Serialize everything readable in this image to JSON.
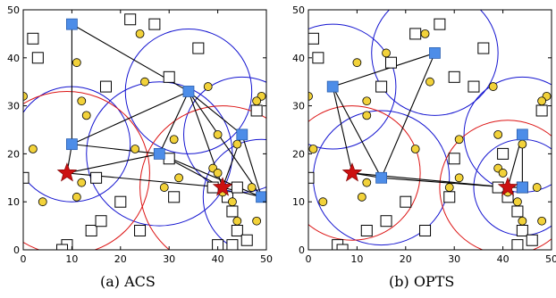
{
  "chart_data": [
    {
      "type": "scatter",
      "caption": "(a) ACS",
      "xlim": [
        0,
        50
      ],
      "ylim": [
        0,
        50
      ],
      "xticks": [
        0,
        10,
        20,
        30,
        40,
        50
      ],
      "yticks": [
        0,
        10,
        20,
        30,
        40,
        50
      ],
      "grid": false,
      "colors": {
        "square_nodes": "#4d8de8",
        "stars": "#cc1010",
        "circles": "#f2d23a",
        "coverage_blue": "#1414d0",
        "coverage_red": "#dc1414"
      },
      "hollow_squares": [
        [
          2,
          44
        ],
        [
          3,
          40
        ],
        [
          0,
          15
        ],
        [
          9,
          1
        ],
        [
          8,
          0
        ],
        [
          14,
          4
        ],
        [
          15,
          15
        ],
        [
          17,
          34
        ],
        [
          16,
          6
        ],
        [
          20,
          10
        ],
        [
          24,
          4
        ],
        [
          31,
          11
        ],
        [
          30,
          36
        ],
        [
          30,
          19
        ],
        [
          36,
          42
        ],
        [
          39,
          13
        ],
        [
          42,
          11
        ],
        [
          44,
          13
        ],
        [
          43,
          8
        ],
        [
          44,
          4
        ],
        [
          43,
          1
        ],
        [
          48,
          29
        ],
        [
          40,
          1
        ],
        [
          22,
          48
        ],
        [
          46,
          2
        ],
        [
          27,
          47
        ]
      ],
      "yellow_circles": [
        [
          0,
          32
        ],
        [
          2,
          21
        ],
        [
          4,
          10
        ],
        [
          11,
          39
        ],
        [
          12,
          31
        ],
        [
          13,
          28
        ],
        [
          12,
          14
        ],
        [
          11,
          11
        ],
        [
          23,
          21
        ],
        [
          24,
          45
        ],
        [
          25,
          35
        ],
        [
          31,
          23
        ],
        [
          29,
          13
        ],
        [
          32,
          15
        ],
        [
          38,
          34
        ],
        [
          39,
          17
        ],
        [
          40,
          16
        ],
        [
          40,
          24
        ],
        [
          41,
          12
        ],
        [
          43,
          10
        ],
        [
          44,
          6
        ],
        [
          44,
          22
        ],
        [
          47,
          13
        ],
        [
          48,
          6
        ],
        [
          49,
          32
        ],
        [
          48,
          31
        ]
      ],
      "blue_squares": [
        [
          10,
          47
        ],
        [
          10,
          22
        ],
        [
          28,
          20
        ],
        [
          34,
          33
        ],
        [
          45,
          24
        ],
        [
          49,
          11
        ]
      ],
      "red_stars": [
        [
          9,
          16
        ],
        [
          41,
          13
        ]
      ],
      "blue_circles": [
        {
          "c": [
            10,
            22
          ],
          "r": 12
        },
        {
          "c": [
            34,
            33
          ],
          "r": 13
        },
        {
          "c": [
            28,
            20
          ],
          "r": 15
        },
        {
          "c": [
            45,
            24
          ],
          "r": 12
        },
        {
          "c": [
            49,
            11
          ],
          "r": 12
        }
      ],
      "red_circles": [
        {
          "c": [
            9,
            16
          ],
          "r": 17
        },
        {
          "c": [
            41,
            13
          ],
          "r": 17
        }
      ],
      "links": [
        [
          [
            10,
            47
          ],
          [
            34,
            33
          ]
        ],
        [
          [
            10,
            47
          ],
          [
            10,
            22
          ]
        ],
        [
          [
            10,
            22
          ],
          [
            9,
            16
          ]
        ],
        [
          [
            10,
            22
          ],
          [
            28,
            20
          ]
        ],
        [
          [
            10,
            22
          ],
          [
            34,
            33
          ]
        ],
        [
          [
            9,
            16
          ],
          [
            28,
            20
          ]
        ],
        [
          [
            9,
            16
          ],
          [
            41,
            13
          ]
        ],
        [
          [
            28,
            20
          ],
          [
            34,
            33
          ]
        ],
        [
          [
            28,
            20
          ],
          [
            49,
            11
          ]
        ],
        [
          [
            28,
            20
          ],
          [
            41,
            13
          ]
        ],
        [
          [
            34,
            33
          ],
          [
            45,
            24
          ]
        ],
        [
          [
            34,
            33
          ],
          [
            49,
            11
          ]
        ],
        [
          [
            34,
            33
          ],
          [
            41,
            13
          ]
        ],
        [
          [
            45,
            24
          ],
          [
            41,
            13
          ]
        ],
        [
          [
            45,
            24
          ],
          [
            49,
            11
          ]
        ],
        [
          [
            41,
            13
          ],
          [
            49,
            11
          ]
        ]
      ]
    },
    {
      "type": "scatter",
      "caption": "(b) OPTS",
      "xlim": [
        0,
        50
      ],
      "ylim": [
        0,
        50
      ],
      "xticks": [
        0,
        10,
        20,
        30,
        40,
        50
      ],
      "yticks": [
        0,
        10,
        20,
        30,
        40,
        50
      ],
      "grid": false,
      "colors": {
        "square_nodes": "#4d8de8",
        "stars": "#cc1010",
        "circles": "#f2d23a",
        "coverage_blue": "#1414d0",
        "coverage_red": "#dc1414"
      },
      "hollow_squares": [
        [
          1,
          44
        ],
        [
          2,
          40
        ],
        [
          0,
          15
        ],
        [
          6,
          1
        ],
        [
          7,
          0
        ],
        [
          12,
          4
        ],
        [
          15,
          34
        ],
        [
          16,
          6
        ],
        [
          20,
          10
        ],
        [
          24,
          4
        ],
        [
          29,
          11
        ],
        [
          30,
          36
        ],
        [
          30,
          19
        ],
        [
          34,
          34
        ],
        [
          36,
          42
        ],
        [
          39,
          13
        ],
        [
          41,
          11
        ],
        [
          44,
          13
        ],
        [
          43,
          8
        ],
        [
          44,
          4
        ],
        [
          43,
          1
        ],
        [
          48,
          29
        ],
        [
          46,
          2
        ],
        [
          22,
          45
        ],
        [
          27,
          47
        ],
        [
          40,
          20
        ],
        [
          17,
          39
        ]
      ],
      "yellow_circles": [
        [
          0,
          32
        ],
        [
          1,
          21
        ],
        [
          3,
          10
        ],
        [
          10,
          39
        ],
        [
          12,
          31
        ],
        [
          12,
          28
        ],
        [
          12,
          14
        ],
        [
          11,
          11
        ],
        [
          22,
          21
        ],
        [
          24,
          45
        ],
        [
          25,
          35
        ],
        [
          31,
          23
        ],
        [
          29,
          13
        ],
        [
          31,
          15
        ],
        [
          38,
          34
        ],
        [
          39,
          17
        ],
        [
          40,
          16
        ],
        [
          39,
          24
        ],
        [
          41,
          12
        ],
        [
          43,
          10
        ],
        [
          44,
          6
        ],
        [
          44,
          22
        ],
        [
          47,
          13
        ],
        [
          48,
          6
        ],
        [
          49,
          32
        ],
        [
          48,
          31
        ],
        [
          16,
          41
        ]
      ],
      "blue_squares": [
        [
          5,
          34
        ],
        [
          15,
          15
        ],
        [
          26,
          41
        ],
        [
          44,
          24
        ],
        [
          44,
          13
        ]
      ],
      "red_stars": [
        [
          9,
          16
        ],
        [
          41,
          13
        ]
      ],
      "blue_circles": [
        {
          "c": [
            5,
            34
          ],
          "r": 13
        },
        {
          "c": [
            15,
            15
          ],
          "r": 14
        },
        {
          "c": [
            26,
            41
          ],
          "r": 13
        },
        {
          "c": [
            44,
            24
          ],
          "r": 12
        },
        {
          "c": [
            44,
            13
          ],
          "r": 10
        }
      ],
      "red_circles": [
        {
          "c": [
            9,
            16
          ],
          "r": 14
        },
        {
          "c": [
            41,
            13
          ],
          "r": 14
        }
      ],
      "links": [
        [
          [
            5,
            34
          ],
          [
            26,
            41
          ]
        ],
        [
          [
            5,
            34
          ],
          [
            9,
            16
          ]
        ],
        [
          [
            5,
            34
          ],
          [
            15,
            15
          ]
        ],
        [
          [
            26,
            41
          ],
          [
            15,
            15
          ]
        ],
        [
          [
            9,
            16
          ],
          [
            15,
            15
          ]
        ],
        [
          [
            9,
            16
          ],
          [
            41,
            13
          ]
        ],
        [
          [
            15,
            15
          ],
          [
            41,
            13
          ]
        ],
        [
          [
            41,
            13
          ],
          [
            44,
            13
          ]
        ],
        [
          [
            44,
            24
          ],
          [
            41,
            13
          ]
        ],
        [
          [
            44,
            24
          ],
          [
            44,
            13
          ]
        ]
      ]
    }
  ]
}
